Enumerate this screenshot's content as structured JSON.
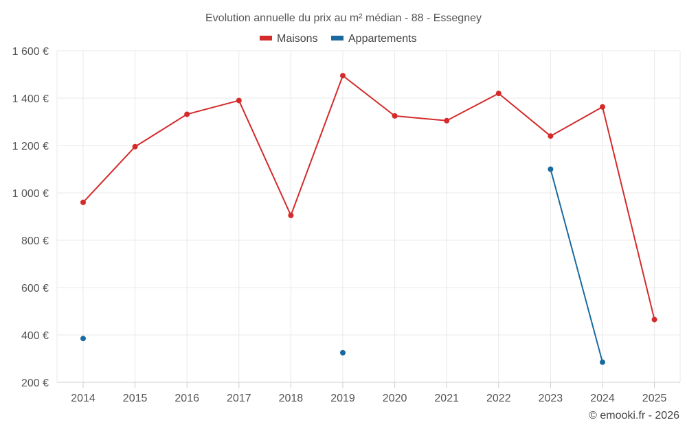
{
  "chart_data": {
    "type": "line",
    "title": "Evolution annuelle du prix au m² médian - 88 - Essegney",
    "categories": [
      "2014",
      "2015",
      "2016",
      "2017",
      "2018",
      "2019",
      "2020",
      "2021",
      "2022",
      "2023",
      "2024",
      "2025"
    ],
    "ylim": [
      200,
      1600
    ],
    "yticks": [
      200,
      400,
      600,
      800,
      1000,
      1200,
      1400,
      1600
    ],
    "ytick_labels": [
      "200 €",
      "400 €",
      "600 €",
      "800 €",
      "1 000 €",
      "1 200 €",
      "1 400 €",
      "1 600 €"
    ],
    "legend_position": "top-center",
    "grid": true,
    "series": [
      {
        "name": "Maisons",
        "color": "#d42a2a",
        "values": [
          960,
          1195,
          1332,
          1390,
          905,
          1495,
          1325,
          1305,
          1420,
          1240,
          1363,
          465
        ]
      },
      {
        "name": "Appartements",
        "color": "#1a6aa0",
        "values": [
          385,
          null,
          null,
          null,
          null,
          325,
          null,
          null,
          null,
          1100,
          285,
          null
        ]
      }
    ]
  },
  "credit": "© emooki.fr - 2026"
}
